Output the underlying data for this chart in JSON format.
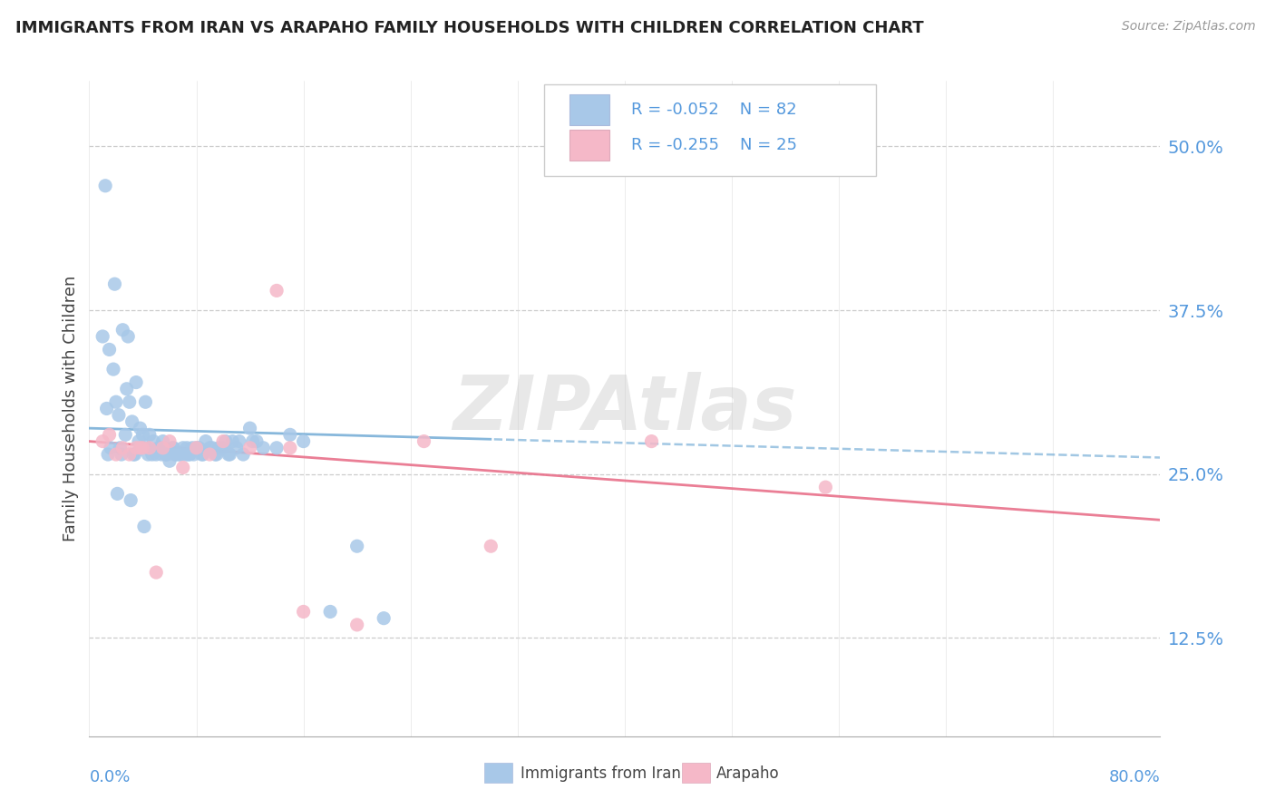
{
  "title": "IMMIGRANTS FROM IRAN VS ARAPAHO FAMILY HOUSEHOLDS WITH CHILDREN CORRELATION CHART",
  "source": "Source: ZipAtlas.com",
  "ylabel": "Family Households with Children",
  "ylabel_ticks": [
    12.5,
    25.0,
    37.5,
    50.0
  ],
  "legend_series1": "Immigrants from Iran",
  "legend_series2": "Arapaho",
  "watermark": "ZIPAtlas",
  "color_blue": "#a8c8e8",
  "color_pink": "#f5b8c8",
  "color_blue_line": "#7ab0d8",
  "color_pink_line": "#e8708a",
  "xmin": 0.0,
  "xmax": 80.0,
  "ymin": 5.0,
  "ymax": 55.0,
  "iran_x": [
    1.2,
    1.5,
    1.8,
    2.0,
    2.2,
    2.5,
    2.8,
    3.0,
    3.2,
    3.5,
    3.8,
    4.0,
    4.2,
    4.5,
    4.8,
    5.0,
    5.2,
    5.5,
    5.8,
    6.0,
    6.2,
    6.5,
    6.8,
    7.0,
    7.2,
    7.5,
    7.8,
    8.0,
    8.5,
    9.0,
    9.5,
    10.0,
    10.5,
    11.0,
    11.5,
    12.0,
    12.5,
    13.0,
    14.0,
    15.0,
    1.0,
    1.3,
    2.3,
    2.7,
    3.3,
    3.7,
    4.3,
    4.7,
    5.3,
    5.7,
    6.3,
    6.7,
    7.3,
    7.7,
    8.2,
    8.7,
    9.2,
    9.7,
    10.2,
    10.7,
    11.2,
    12.2,
    1.6,
    2.1,
    4.1,
    3.1,
    16.0,
    18.0,
    20.0,
    22.0,
    1.4,
    2.4,
    3.4,
    4.4,
    5.4,
    6.4,
    7.4,
    8.4,
    9.4,
    10.4,
    1.9,
    2.9
  ],
  "iran_y": [
    47.0,
    34.5,
    33.0,
    30.5,
    29.5,
    36.0,
    31.5,
    30.5,
    29.0,
    32.0,
    28.5,
    28.0,
    30.5,
    28.0,
    27.5,
    26.5,
    27.0,
    27.5,
    26.5,
    26.0,
    27.0,
    26.5,
    26.5,
    27.0,
    26.5,
    26.5,
    26.5,
    27.0,
    26.5,
    27.0,
    26.5,
    27.0,
    26.5,
    27.0,
    26.5,
    28.5,
    27.5,
    27.0,
    27.0,
    28.0,
    35.5,
    30.0,
    27.0,
    28.0,
    26.5,
    27.5,
    27.0,
    26.5,
    27.0,
    26.5,
    27.0,
    26.5,
    27.0,
    27.0,
    27.0,
    27.5,
    27.0,
    27.0,
    27.5,
    27.5,
    27.5,
    27.5,
    27.0,
    23.5,
    21.0,
    23.0,
    27.5,
    14.5,
    19.5,
    14.0,
    26.5,
    26.5,
    26.5,
    26.5,
    26.5,
    26.5,
    26.5,
    26.5,
    26.5,
    26.5,
    39.5,
    35.5
  ],
  "arapaho_x": [
    1.0,
    1.5,
    2.0,
    2.5,
    3.0,
    3.5,
    4.0,
    4.5,
    5.0,
    6.0,
    7.0,
    8.0,
    9.0,
    10.0,
    12.0,
    14.0,
    16.0,
    20.0,
    25.0,
    30.0,
    42.0,
    55.0,
    3.8,
    5.5,
    15.0
  ],
  "arapaho_y": [
    27.5,
    28.0,
    26.5,
    27.0,
    26.5,
    27.0,
    27.0,
    27.0,
    17.5,
    27.5,
    25.5,
    27.0,
    26.5,
    27.5,
    27.0,
    39.0,
    14.5,
    13.5,
    27.5,
    19.5,
    27.5,
    24.0,
    27.0,
    27.0,
    27.0
  ]
}
